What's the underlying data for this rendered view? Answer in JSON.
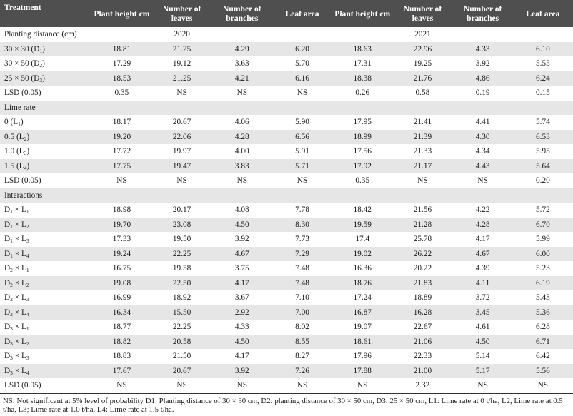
{
  "headers": [
    "Treatment",
    "Plant height cm",
    "Number of leaves",
    "Number of branches",
    "Leaf area",
    "Plant height cm",
    "Number of leaves",
    "Number of branches",
    "Leaf area"
  ],
  "rows": [
    {
      "type": "section",
      "label": "Planting distance (cm)",
      "year_2020": "2020",
      "year_2021": "2021"
    },
    {
      "type": "data",
      "label": "30 × 30 (D",
      "sub": "1",
      "tail": ")",
      "values": [
        "18.81",
        "21.25",
        "4.29",
        "6.20",
        "18.63",
        "22.96",
        "4.33",
        "6.10"
      ]
    },
    {
      "type": "data",
      "label": "30 × 50 (D",
      "sub": "2",
      "tail": ")",
      "values": [
        "17.29",
        "19.12",
        "3.63",
        "5.70",
        "17.31",
        "19.25",
        "3.92",
        "5.55"
      ]
    },
    {
      "type": "data",
      "label": "25 × 50 (D",
      "sub": "3",
      "tail": ")",
      "values": [
        "18.53",
        "21.25",
        "4.21",
        "6.16",
        "18.38",
        "21.76",
        "4.86",
        "6.24"
      ]
    },
    {
      "type": "data",
      "label": "LSD (0.05)",
      "values": [
        "0.35",
        "NS",
        "NS",
        "NS",
        "0.26",
        "0.58",
        "0.19",
        "0.15"
      ]
    },
    {
      "type": "section",
      "label": "Lime rate"
    },
    {
      "type": "data",
      "label": "0 (L",
      "sub": "1",
      "tail": ")",
      "values": [
        "18.17",
        "20.67",
        "4.06",
        "5.90",
        "17.95",
        "21.41",
        "4.41",
        "5.74"
      ]
    },
    {
      "type": "data",
      "label": "0.5 (L",
      "sub": "2",
      "tail": ")",
      "values": [
        "19.20",
        "22.06",
        "4.28",
        "6.56",
        "18.99",
        "21.39",
        "4.30",
        "6.53"
      ]
    },
    {
      "type": "data",
      "label": "1.0 (L",
      "sub": "3",
      "tail": ")",
      "values": [
        "17.72",
        "19.97",
        "4.00",
        "5.91",
        "17.56",
        "21.33",
        "4.34",
        "5.95"
      ]
    },
    {
      "type": "data",
      "label": "1.5 (L",
      "sub": "4",
      "tail": ")",
      "values": [
        "17.75",
        "19.47",
        "3.83",
        "5.71",
        "17.92",
        "21.17",
        "4.43",
        "5.64"
      ]
    },
    {
      "type": "data",
      "label": "LSD (0.05)",
      "values": [
        "NS",
        "NS",
        "NS",
        "NS",
        "0.35",
        "NS",
        "NS",
        "0.20"
      ]
    },
    {
      "type": "section",
      "label": "Interactions"
    },
    {
      "type": "inter",
      "d": "1",
      "l": "1",
      "values": [
        "18.98",
        "20.17",
        "4.08",
        "7.78",
        "18.42",
        "21.56",
        "4.22",
        "5.72"
      ]
    },
    {
      "type": "inter",
      "d": "1",
      "l": "2",
      "values": [
        "19.70",
        "23.08",
        "4.50",
        "8.30",
        "19.59",
        "21.28",
        "4.28",
        "6.70"
      ]
    },
    {
      "type": "inter",
      "d": "1",
      "l": "3",
      "values": [
        "17.33",
        "19.50",
        "3.92",
        "7.73",
        "17.4",
        "25.78",
        "4.17",
        "5.99"
      ]
    },
    {
      "type": "inter",
      "d": "1",
      "l": "4",
      "values": [
        "19.24",
        "22.25",
        "4.67",
        "7.29",
        "19.02",
        "26.22",
        "4.67",
        "6.00"
      ]
    },
    {
      "type": "inter",
      "d": "2",
      "l": "1",
      "values": [
        "16.75",
        "19.58",
        "3.75",
        "7.48",
        "16.36",
        "20.22",
        "4.39",
        "5.23"
      ]
    },
    {
      "type": "inter",
      "d": "2",
      "l": "2",
      "values": [
        "19.08",
        "22.50",
        "4.17",
        "7.48",
        "18.76",
        "21.83",
        "4.11",
        "6.19"
      ]
    },
    {
      "type": "inter",
      "d": "2",
      "l": "3",
      "values": [
        "16.99",
        "18.92",
        "3.67",
        "7.10",
        "17.24",
        "18.89",
        "3.72",
        "5.43"
      ]
    },
    {
      "type": "inter",
      "d": "2",
      "l": "4",
      "values": [
        "16.34",
        "15.50",
        "2.92",
        "7.00",
        "16.87",
        "16.28",
        "3.45",
        "5.36"
      ]
    },
    {
      "type": "inter",
      "d": "3",
      "l": "1",
      "values": [
        "18.77",
        "22.25",
        "4.33",
        "8.02",
        "19.07",
        "22.67",
        "4.61",
        "6.28"
      ]
    },
    {
      "type": "inter",
      "d": "3",
      "l": "2",
      "values": [
        "18.82",
        "20.58",
        "4.50",
        "8.55",
        "18.61",
        "21.06",
        "4.50",
        "6.71"
      ]
    },
    {
      "type": "inter",
      "d": "3",
      "l": "3",
      "values": [
        "18.83",
        "21.50",
        "4.17",
        "8.27",
        "17.96",
        "22.33",
        "5.14",
        "6.42"
      ]
    },
    {
      "type": "inter",
      "d": "3",
      "l": "4",
      "values": [
        "17.67",
        "20.67",
        "3.92",
        "7.26",
        "17.88",
        "21.00",
        "5.17",
        "5.56"
      ]
    },
    {
      "type": "data",
      "label": "LSD (0.05)",
      "values": [
        "NS",
        "NS",
        "NS",
        "NS",
        "NS",
        "2.32",
        "NS",
        "NS"
      ]
    }
  ],
  "footnote": "NS: Not significant at 5% level of probability D1: Planting distance of 30 × 30 cm, D2: planting distance of 30 × 50 cm, D3: 25 × 50 cm, L1: Lime rate at 0 t/ha, L2, Lime rate at 0.5 t/ha, L3; Lime rate at 1.0 t/ha, L4: Lime rate at 1.5 t/ha."
}
